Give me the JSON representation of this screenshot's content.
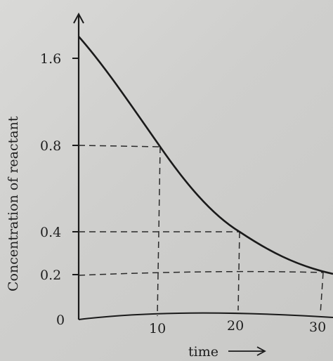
{
  "chart_data": {
    "type": "line",
    "title": "",
    "xlabel": "time",
    "ylabel": "Concentration of reactant",
    "x_ticks": [
      "10",
      "20",
      "30"
    ],
    "y_ticks": [
      "0",
      "0.2",
      "0.4",
      "0.8",
      "1.6"
    ],
    "grid": false,
    "series": [
      {
        "x": [
          0,
          5,
          10,
          15,
          20,
          25,
          30,
          31
        ],
        "y": [
          1.85,
          1.3,
          0.8,
          0.57,
          0.4,
          0.29,
          0.2,
          0.19
        ]
      }
    ],
    "guides": [
      {
        "x": 10,
        "y": 0.8
      },
      {
        "x": 20,
        "y": 0.4
      },
      {
        "x": 30,
        "y": 0.2
      }
    ],
    "xlim": [
      0,
      31
    ],
    "ylim": [
      0,
      1.9
    ]
  }
}
